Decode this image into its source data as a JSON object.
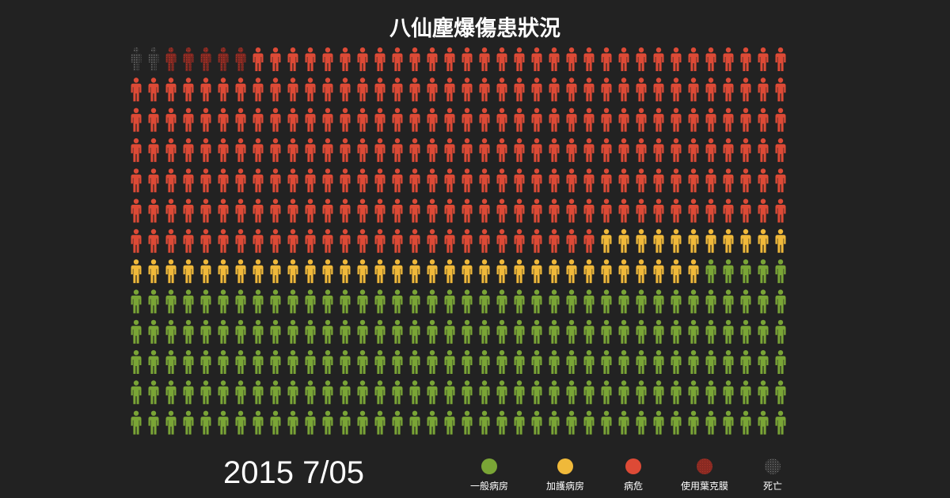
{
  "chart_data": {
    "type": "pictogram",
    "title": "八仙塵爆傷患狀況",
    "date_label": "2015 7/05",
    "unit": "person",
    "layout": "grid filled from the top-left, row by row",
    "order": [
      "死亡",
      "使用葉克膜",
      "病危",
      "加護病房",
      "一般病房"
    ],
    "categories": [
      {
        "key": "general",
        "label": "一般病房",
        "count": 195,
        "color": "#7aa536"
      },
      {
        "key": "icu",
        "label": "加護病房",
        "count": 44,
        "color": "#f0b93a"
      },
      {
        "key": "critical",
        "label": "病危",
        "count": 248,
        "color": "#dd4a36"
      },
      {
        "key": "ecmo",
        "label": "使用葉克膜",
        "count": 5,
        "color": "#8a2a22"
      },
      {
        "key": "death",
        "label": "死亡",
        "count": 2,
        "color": "#555555"
      }
    ]
  }
}
